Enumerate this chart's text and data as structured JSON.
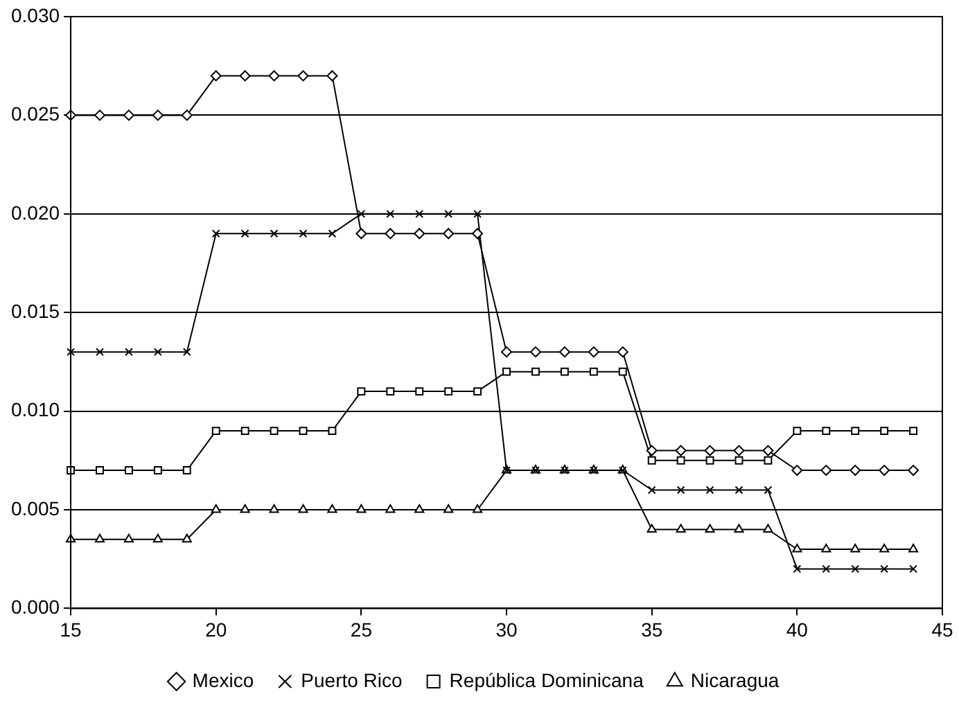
{
  "chart_data": {
    "type": "line",
    "x": [
      15,
      16,
      17,
      18,
      19,
      20,
      21,
      22,
      23,
      24,
      25,
      26,
      27,
      28,
      29,
      30,
      31,
      32,
      33,
      34,
      35,
      36,
      37,
      38,
      39,
      40,
      41,
      42,
      43,
      44
    ],
    "series": [
      {
        "name": "Mexico",
        "color": "#000000",
        "marker": "diamond",
        "values": [
          0.025,
          0.025,
          0.025,
          0.025,
          0.025,
          0.027,
          0.027,
          0.027,
          0.027,
          0.027,
          0.019,
          0.019,
          0.019,
          0.019,
          0.019,
          0.013,
          0.013,
          0.013,
          0.013,
          0.013,
          0.008,
          0.008,
          0.008,
          0.008,
          0.008,
          0.007,
          0.007,
          0.007,
          0.007,
          0.007
        ]
      },
      {
        "name": "Puerto Rico",
        "color": "#000000",
        "marker": "cross",
        "values": [
          0.013,
          0.013,
          0.013,
          0.013,
          0.013,
          0.019,
          0.019,
          0.019,
          0.019,
          0.019,
          0.02,
          0.02,
          0.02,
          0.02,
          0.02,
          0.007,
          0.007,
          0.007,
          0.007,
          0.007,
          0.006,
          0.006,
          0.006,
          0.006,
          0.006,
          0.002,
          0.002,
          0.002,
          0.002,
          0.002
        ]
      },
      {
        "name": "República Dominicana",
        "color": "#000000",
        "marker": "square",
        "values": [
          0.007,
          0.007,
          0.007,
          0.007,
          0.007,
          0.009,
          0.009,
          0.009,
          0.009,
          0.009,
          0.011,
          0.011,
          0.011,
          0.011,
          0.011,
          0.012,
          0.012,
          0.012,
          0.012,
          0.012,
          0.0075,
          0.0075,
          0.0075,
          0.0075,
          0.0075,
          0.009,
          0.009,
          0.009,
          0.009,
          0.009
        ]
      },
      {
        "name": "Nicaragua",
        "color": "#000000",
        "marker": "triangle",
        "values": [
          0.0035,
          0.0035,
          0.0035,
          0.0035,
          0.0035,
          0.005,
          0.005,
          0.005,
          0.005,
          0.005,
          0.005,
          0.005,
          0.005,
          0.005,
          0.005,
          0.007,
          0.007,
          0.007,
          0.007,
          0.007,
          0.004,
          0.004,
          0.004,
          0.004,
          0.004,
          0.003,
          0.003,
          0.003,
          0.003,
          0.003
        ]
      }
    ],
    "xlim": [
      15,
      45
    ],
    "xticks": [
      15,
      20,
      25,
      30,
      35,
      40,
      45
    ],
    "ylim": [
      0,
      0.03
    ],
    "yticks": [
      {
        "value": 0,
        "label": "0.000"
      },
      {
        "value": 0.005,
        "label": "0.005"
      },
      {
        "value": 0.01,
        "label": "0.010"
      },
      {
        "value": 0.015,
        "label": "0.015"
      },
      {
        "value": 0.02,
        "label": "0.020"
      },
      {
        "value": 0.025,
        "label": "0.025"
      },
      {
        "value": 0.03,
        "label": "0.030"
      }
    ],
    "grid": "y",
    "legend": "bottom",
    "line_style": "solid"
  }
}
